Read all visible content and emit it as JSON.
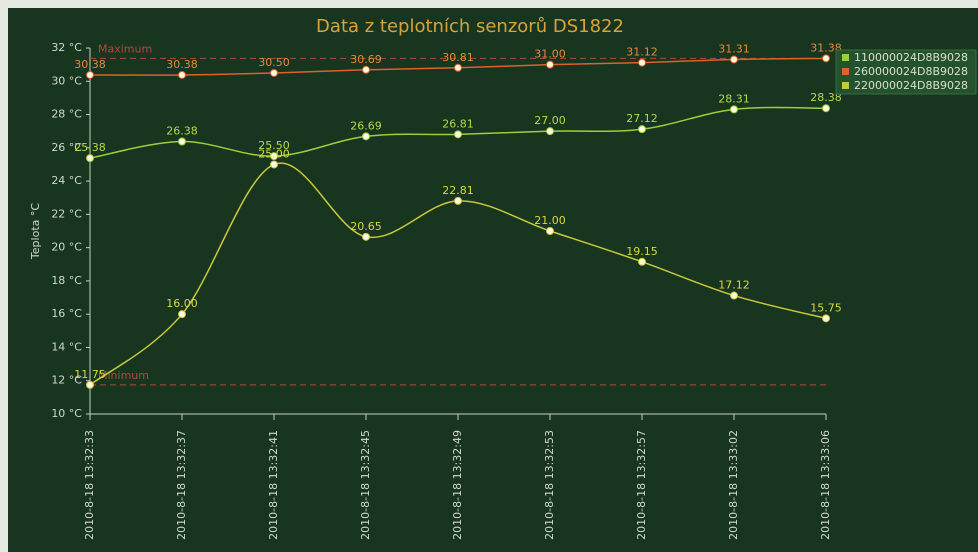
{
  "chart_data": {
    "type": "line",
    "title": "Data z teplotních senzorů DS1822",
    "y_label": "Teplota °C",
    "categories": [
      "2010-8-18 13:32:33",
      "2010-8-18 13:32:37",
      "2010-8-18 13:32:41",
      "2010-8-18 13:32:45",
      "2010-8-18 13:32:49",
      "2010-8-18 13:32:53",
      "2010-8-18 13:32:57",
      "2010-8-18 13:33:02",
      "2010-8-18 13:33:06"
    ],
    "series": [
      {
        "name": "110000024D8B9028",
        "color": "#9ccf3c",
        "label_color": "#b8d84a",
        "values": [
          25.38,
          26.38,
          25.5,
          26.69,
          26.81,
          27.0,
          27.12,
          28.31,
          28.38
        ],
        "value_labels": [
          "25.38",
          "26.38",
          "25.50",
          "26.69",
          "26.81",
          "27.00",
          "27.12",
          "28.31",
          "28.38"
        ]
      },
      {
        "name": "260000024D8B9028",
        "color": "#e0602a",
        "label_color": "#e8883a",
        "values": [
          30.38,
          30.38,
          30.5,
          30.69,
          30.81,
          31.0,
          31.12,
          31.31,
          31.38
        ],
        "value_labels": [
          "30.38",
          "30.38",
          "30.50",
          "30.69",
          "30.81",
          "31.00",
          "31.12",
          "31.31",
          "31.38"
        ]
      },
      {
        "name": "220000024D8B9028",
        "color": "#c8c83a",
        "label_color": "#d8d840",
        "values": [
          11.75,
          16.0,
          25.0,
          20.65,
          22.81,
          21.0,
          19.15,
          17.12,
          15.75
        ],
        "value_labels": [
          "11.75",
          "16.00",
          "25.00",
          "20.65",
          "22.81",
          "21.00",
          "19.15",
          "17.12",
          "15.75"
        ]
      }
    ],
    "plot_lines": [
      {
        "label": "Maximum",
        "value": 31.38,
        "color": "#b04a3a"
      },
      {
        "label": "Minimum",
        "value": 11.75,
        "color": "#b04a3a"
      }
    ],
    "ylim": [
      10,
      32
    ],
    "yticks": [
      {
        "value": 10,
        "label": "10 °C"
      },
      {
        "value": 12,
        "label": "12 °C"
      },
      {
        "value": 14,
        "label": "14 °C"
      },
      {
        "value": 16,
        "label": "16 °C"
      },
      {
        "value": 18,
        "label": "18 °C"
      },
      {
        "value": 20,
        "label": "20 °C"
      },
      {
        "value": 22,
        "label": "22 °C"
      },
      {
        "value": 24,
        "label": "24 °C"
      },
      {
        "value": 26,
        "label": "26 °C"
      },
      {
        "value": 28,
        "label": "28 °C"
      },
      {
        "value": 30,
        "label": "30 °C"
      },
      {
        "value": 32,
        "label": "32 °C"
      }
    ],
    "grid": false,
    "smooth": true,
    "legend": "top-right"
  }
}
